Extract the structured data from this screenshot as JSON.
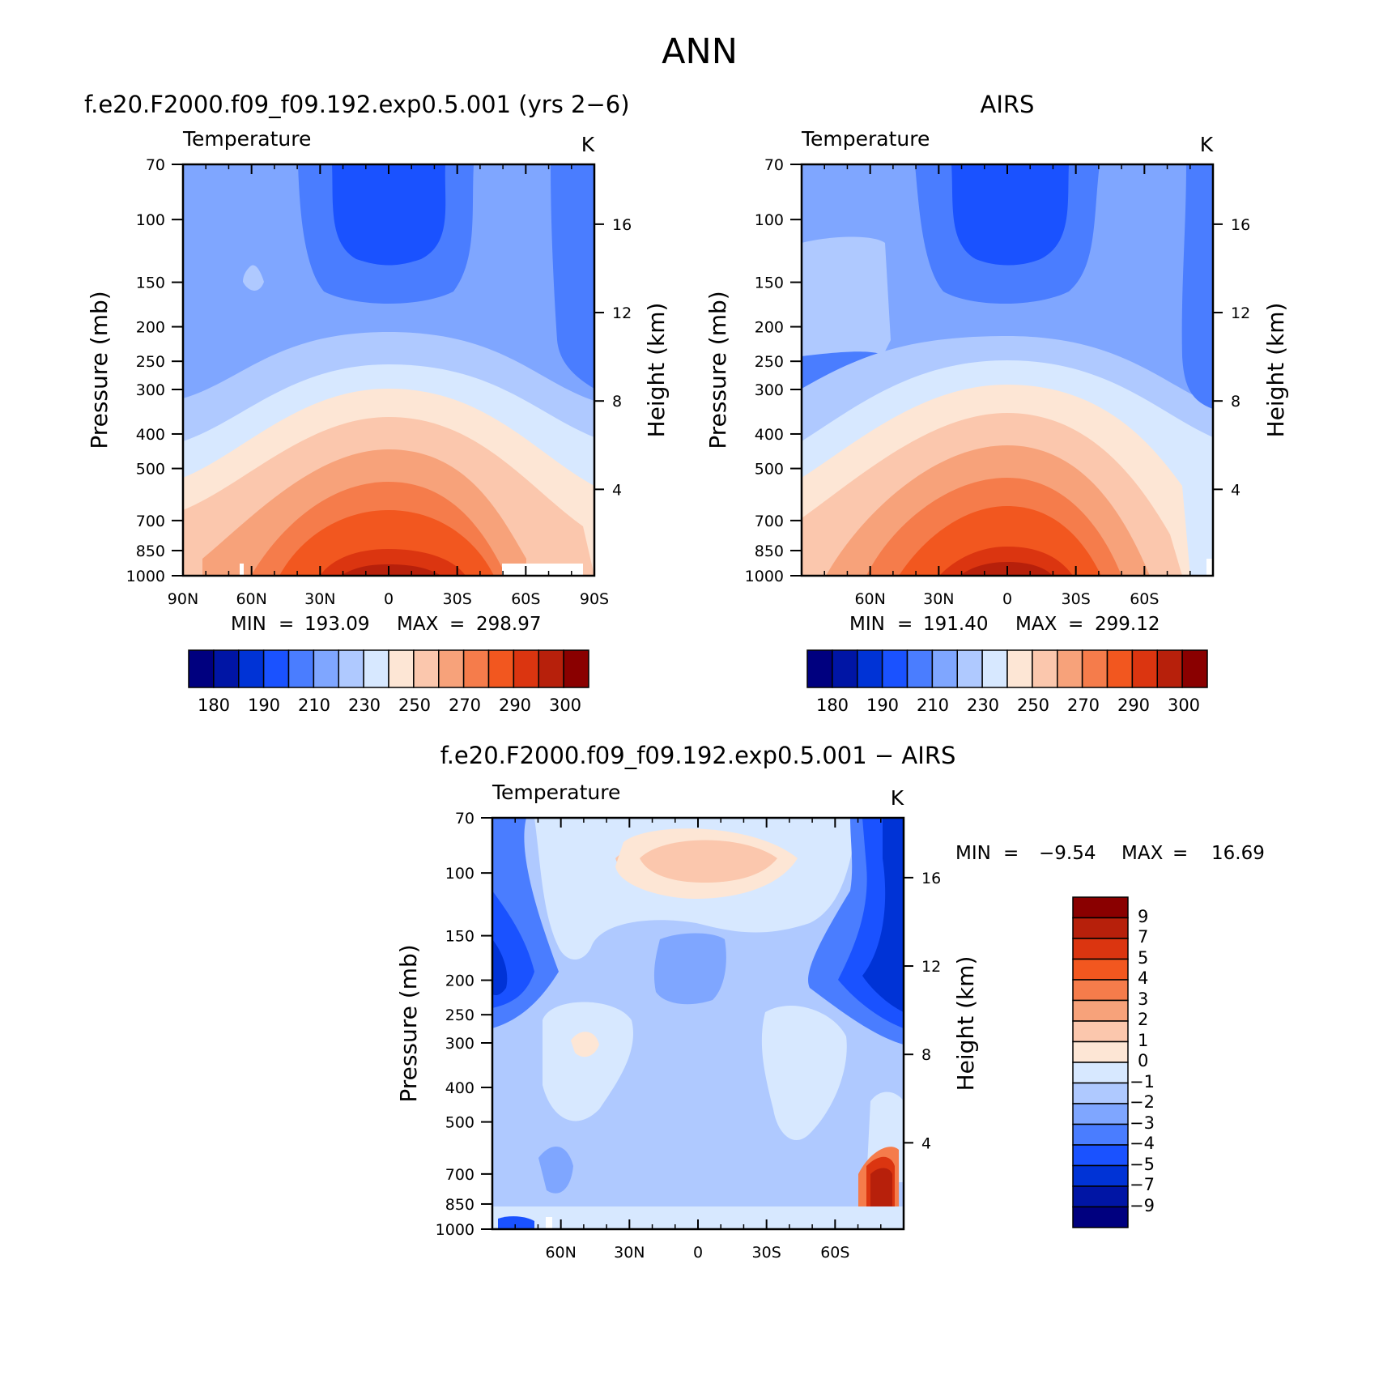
{
  "figure": {
    "title": "ANN"
  },
  "colors": {
    "abs_scale": [
      "#00007f",
      "#0015a5",
      "#0033d6",
      "#1a52ff",
      "#4a7dff",
      "#7fa6ff",
      "#afc9ff",
      "#d7e8ff",
      "#fde6d5",
      "#fbc7ad",
      "#f7a27a",
      "#f57c4b",
      "#f2571f",
      "#db3510",
      "#b7200b",
      "#8a0000"
    ],
    "diff_scale": [
      "#00007f",
      "#0015a5",
      "#0033d6",
      "#1a52ff",
      "#4a7dff",
      "#7fa6ff",
      "#afc9ff",
      "#d7e8ff",
      "#fde6d5",
      "#fbc7ad",
      "#f7a27a",
      "#f57c4b",
      "#f2571f",
      "#db3510",
      "#b7200b",
      "#8a0000"
    ]
  },
  "panels": {
    "model": {
      "title": "f.e20.F2000.f09_f09.192.exp0.5.001 (yrs 2−6)",
      "subtitle": "Temperature",
      "units": "K",
      "ylabel": "Pressure (mb)",
      "ylabel_right": "Height (km)",
      "pressure_ticks": [
        "70",
        "100",
        "150",
        "200",
        "250",
        "300",
        "400",
        "500",
        "700",
        "850",
        "1000"
      ],
      "height_ticks": [
        "16",
        "12",
        "8",
        "4"
      ],
      "lat_ticks": [
        "90N",
        "60N",
        "30N",
        "0",
        "30S",
        "60S",
        "90S"
      ],
      "min_label": "MIN",
      "min_value": "193.09",
      "max_label": "MAX",
      "max_value": "298.97",
      "colorbar_labels": [
        "180",
        "190",
        "210",
        "230",
        "250",
        "270",
        "290",
        "300"
      ]
    },
    "obs": {
      "title": "AIRS",
      "subtitle": "Temperature",
      "units": "K",
      "ylabel": "Pressure (mb)",
      "ylabel_right": "Height (km)",
      "pressure_ticks": [
        "70",
        "100",
        "150",
        "200",
        "250",
        "300",
        "400",
        "500",
        "700",
        "850",
        "1000"
      ],
      "height_ticks": [
        "16",
        "12",
        "8",
        "4"
      ],
      "lat_ticks": [
        "60N",
        "30N",
        "0",
        "30S",
        "60S"
      ],
      "min_label": "MIN",
      "min_value": "191.40",
      "max_label": "MAX",
      "max_value": "299.12",
      "colorbar_labels": [
        "180",
        "190",
        "210",
        "230",
        "250",
        "270",
        "290",
        "300"
      ]
    },
    "diff": {
      "title": "f.e20.F2000.f09_f09.192.exp0.5.001 − AIRS",
      "subtitle": "Temperature",
      "units": "K",
      "ylabel": "Pressure (mb)",
      "ylabel_right": "Height (km)",
      "pressure_ticks": [
        "70",
        "100",
        "150",
        "200",
        "250",
        "300",
        "400",
        "500",
        "700",
        "850",
        "1000"
      ],
      "height_ticks": [
        "16",
        "12",
        "8",
        "4"
      ],
      "lat_ticks": [
        "60N",
        "30N",
        "0",
        "30S",
        "60S"
      ],
      "min_label": "MIN",
      "min_value": "−9.54",
      "max_label": "MAX",
      "max_value": "16.69",
      "colorbar_labels": [
        "9",
        "7",
        "5",
        "4",
        "3",
        "2",
        "1",
        "0",
        "−1",
        "−2",
        "−3",
        "−4",
        "−5",
        "−7",
        "−9"
      ]
    }
  },
  "chart_data": [
    {
      "type": "heatmap",
      "title": "f.e20.F2000.f09_f09.192.exp0.5.001 (yrs 2−6)",
      "variable": "Temperature",
      "units": "K",
      "x": "latitude",
      "xlim": [
        90,
        -90
      ],
      "xticks": [
        "90N",
        "60N",
        "30N",
        "0",
        "30S",
        "60S",
        "90S"
      ],
      "ylabel": "Pressure (mb)",
      "ylim": [
        1000,
        70
      ],
      "yticks": [
        70,
        100,
        150,
        200,
        250,
        300,
        400,
        500,
        700,
        850,
        1000
      ],
      "height_km_ticks": [
        16,
        12,
        8,
        4
      ],
      "min": 193.09,
      "max": 298.97,
      "contour_levels": [
        180,
        185,
        190,
        200,
        210,
        220,
        230,
        240,
        250,
        260,
        270,
        280,
        290,
        295,
        300
      ],
      "description_levels": {
        "tropopause_tropics_min_K": 195,
        "surface_tropics_max_K": 297
      }
    },
    {
      "type": "heatmap",
      "title": "AIRS",
      "variable": "Temperature",
      "units": "K",
      "x": "latitude",
      "xlim": [
        90,
        -90
      ],
      "xticks": [
        "60N",
        "30N",
        "0",
        "30S",
        "60S"
      ],
      "ylabel": "Pressure (mb)",
      "ylim": [
        1000,
        70
      ],
      "yticks": [
        70,
        100,
        150,
        200,
        250,
        300,
        400,
        500,
        700,
        850,
        1000
      ],
      "height_km_ticks": [
        16,
        12,
        8,
        4
      ],
      "min": 191.4,
      "max": 299.12,
      "contour_levels": [
        180,
        185,
        190,
        200,
        210,
        220,
        230,
        240,
        250,
        260,
        270,
        280,
        290,
        295,
        300
      ]
    },
    {
      "type": "heatmap",
      "title": "f.e20.F2000.f09_f09.192.exp0.5.001 − AIRS",
      "variable": "Temperature",
      "units": "K",
      "x": "latitude",
      "xlim": [
        90,
        -90
      ],
      "xticks": [
        "60N",
        "30N",
        "0",
        "30S",
        "60S"
      ],
      "ylabel": "Pressure (mb)",
      "ylim": [
        1000,
        70
      ],
      "yticks": [
        70,
        100,
        150,
        200,
        250,
        300,
        400,
        500,
        700,
        850,
        1000
      ],
      "height_km_ticks": [
        16,
        12,
        8,
        4
      ],
      "min": -9.54,
      "max": 16.69,
      "contour_levels": [
        -9,
        -7,
        -5,
        -4,
        -3,
        -2,
        -1,
        0,
        1,
        2,
        3,
        4,
        5,
        7,
        9
      ]
    }
  ]
}
